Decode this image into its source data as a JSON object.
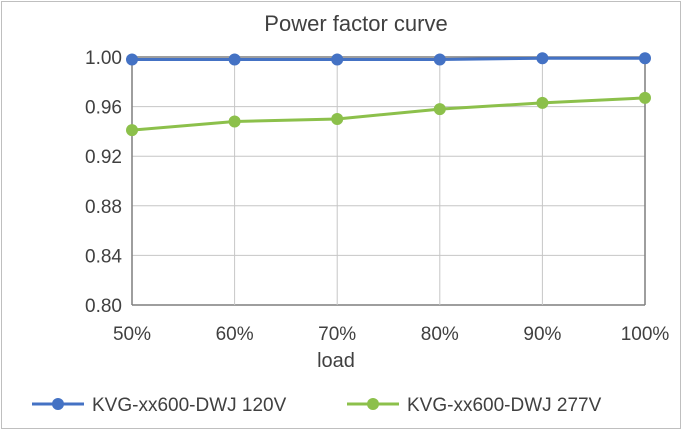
{
  "chart_data": {
    "type": "line",
    "title": "Power factor curve",
    "xlabel": "load",
    "ylabel": "",
    "categories": [
      "50%",
      "60%",
      "70%",
      "80%",
      "90%",
      "100%"
    ],
    "ylim": [
      0.8,
      1.0
    ],
    "yticks": [
      "0.80",
      "0.84",
      "0.88",
      "0.92",
      "0.96",
      "1.00"
    ],
    "grid": true,
    "legend_position": "bottom",
    "series": [
      {
        "name": "KVG-xx600-DWJ 120V",
        "color": "#4472c4",
        "values": [
          0.998,
          0.998,
          0.998,
          0.998,
          0.999,
          0.999
        ]
      },
      {
        "name": "KVG-xx600-DWJ 277V",
        "color": "#8cc04b",
        "values": [
          0.941,
          0.948,
          0.95,
          0.958,
          0.963,
          0.967
        ]
      }
    ]
  }
}
